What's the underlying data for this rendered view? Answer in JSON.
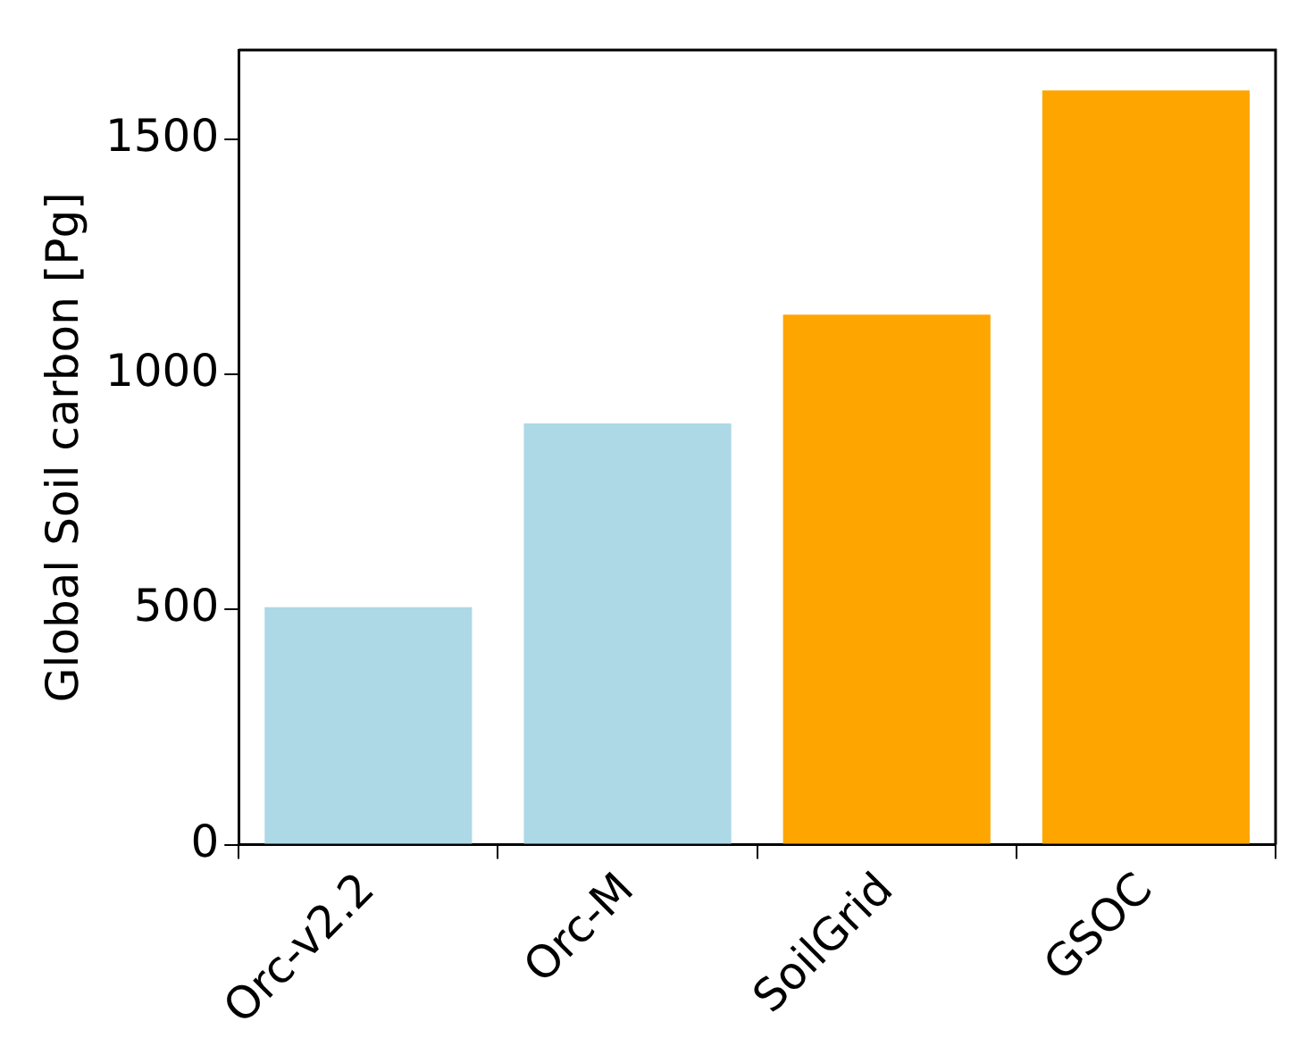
{
  "chart_data": {
    "type": "bar",
    "ylabel": "Global Soil carbon [Pg]",
    "categories": [
      "Orc-v2.2",
      "Orc-M",
      "SoilGrid",
      "GSOC"
    ],
    "values": [
      505,
      896,
      1127,
      1604
    ],
    "colors": [
      "#add8e6",
      "#add8e6",
      "#ffa500",
      "#ffa500"
    ],
    "ylim": [
      0,
      1690
    ],
    "yticks": [
      0,
      500,
      1000,
      1500
    ],
    "grid": false,
    "legend": false
  }
}
